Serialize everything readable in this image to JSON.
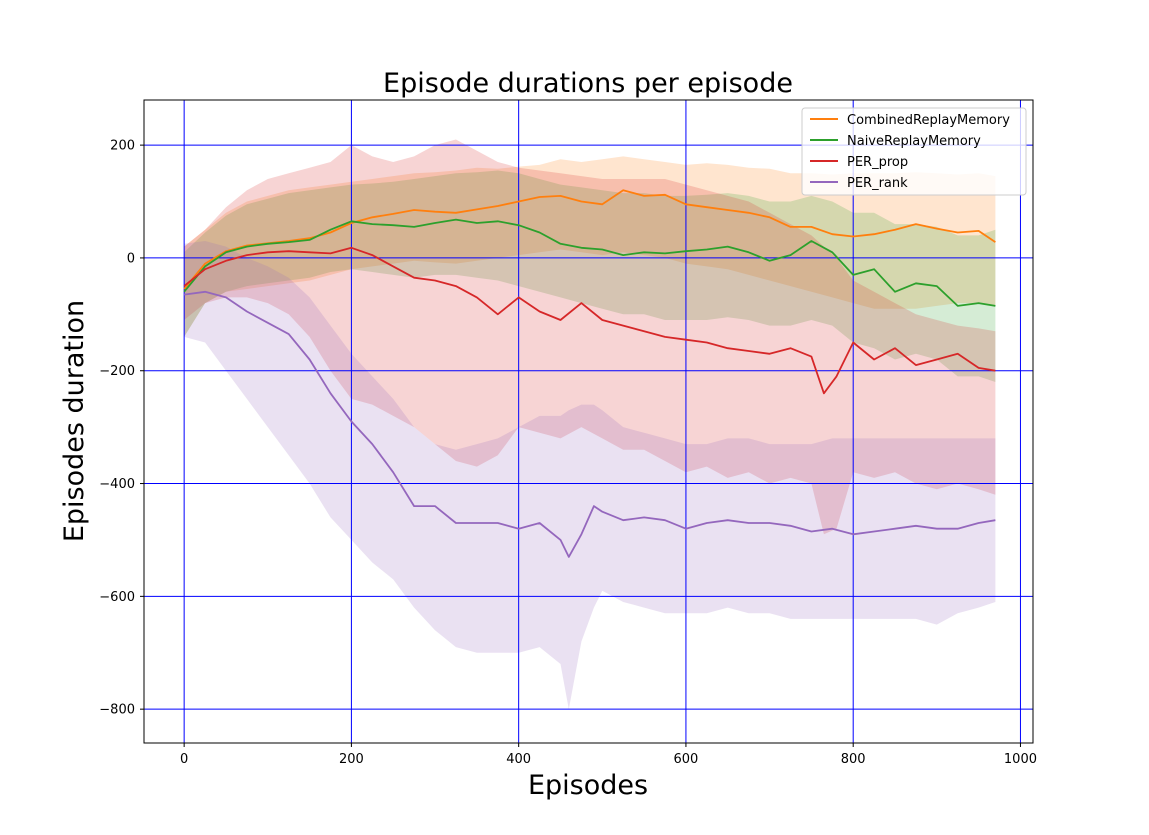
{
  "chart_data": {
    "type": "line",
    "title": "Episode durations per episode",
    "xlabel": "Episodes",
    "ylabel": "Episodes duration",
    "xlim": [
      -48,
      1015
    ],
    "ylim": [
      -860,
      280
    ],
    "xticks": [
      0,
      200,
      400,
      600,
      800,
      1000
    ],
    "yticks": [
      200,
      0,
      -200,
      -400,
      -600,
      -800
    ],
    "xtick_labels": [
      "0",
      "200",
      "400",
      "600",
      "800",
      "1000"
    ],
    "ytick_labels": [
      "200",
      "0",
      "−200",
      "−400",
      "−600",
      "−800"
    ],
    "grid": true,
    "grid_color": "#0000ff",
    "legend_position": "upper-right",
    "series": [
      {
        "name": "CombinedReplayMemory",
        "color": "#ff7f0e",
        "x": [
          0,
          25,
          50,
          75,
          100,
          125,
          150,
          175,
          200,
          225,
          250,
          275,
          300,
          325,
          350,
          375,
          400,
          425,
          450,
          475,
          500,
          525,
          550,
          575,
          600,
          625,
          650,
          675,
          700,
          725,
          750,
          775,
          800,
          825,
          850,
          875,
          900,
          925,
          950,
          970
        ],
        "y": [
          -55,
          -10,
          12,
          22,
          26,
          30,
          35,
          45,
          62,
          72,
          78,
          85,
          82,
          80,
          86,
          92,
          100,
          108,
          110,
          100,
          95,
          120,
          110,
          112,
          95,
          90,
          85,
          80,
          72,
          55,
          55,
          42,
          38,
          42,
          50,
          60,
          52,
          45,
          48,
          28
        ],
        "upper": [
          20,
          50,
          80,
          100,
          110,
          120,
          125,
          130,
          135,
          140,
          145,
          150,
          152,
          155,
          160,
          158,
          162,
          165,
          175,
          170,
          175,
          180,
          175,
          170,
          165,
          168,
          165,
          160,
          158,
          150,
          150,
          148,
          150,
          150,
          150,
          152,
          150,
          148,
          150,
          145
        ],
        "lower": [
          -140,
          -80,
          -60,
          -55,
          -50,
          -45,
          -40,
          -30,
          -20,
          -15,
          -10,
          -5,
          -8,
          -10,
          -5,
          0,
          5,
          10,
          15,
          10,
          5,
          10,
          5,
          0,
          -10,
          -15,
          -20,
          -30,
          -40,
          -50,
          -60,
          -70,
          -80,
          -90,
          -90,
          -90,
          -85,
          -80,
          -80,
          -85
        ]
      },
      {
        "name": "NaiveReplayMemory",
        "color": "#2ca02c",
        "x": [
          0,
          25,
          50,
          75,
          100,
          125,
          150,
          175,
          200,
          225,
          250,
          275,
          300,
          325,
          350,
          375,
          400,
          425,
          450,
          475,
          500,
          525,
          550,
          575,
          600,
          625,
          650,
          675,
          700,
          725,
          750,
          775,
          800,
          825,
          850,
          875,
          900,
          925,
          950,
          970
        ],
        "y": [
          -60,
          -15,
          10,
          20,
          25,
          28,
          32,
          50,
          65,
          60,
          58,
          55,
          62,
          68,
          62,
          65,
          58,
          45,
          25,
          18,
          15,
          5,
          10,
          8,
          12,
          15,
          20,
          10,
          -5,
          5,
          30,
          10,
          -30,
          -20,
          -60,
          -45,
          -50,
          -85,
          -80,
          -85
        ],
        "upper": [
          10,
          45,
          75,
          95,
          105,
          115,
          120,
          125,
          130,
          132,
          135,
          140,
          145,
          150,
          152,
          155,
          150,
          140,
          130,
          125,
          120,
          115,
          115,
          110,
          110,
          112,
          115,
          110,
          100,
          100,
          110,
          100,
          80,
          80,
          60,
          60,
          55,
          40,
          40,
          50
        ],
        "lower": [
          -140,
          -80,
          -60,
          -50,
          -45,
          -40,
          -35,
          -25,
          -20,
          -25,
          -30,
          -35,
          -30,
          -30,
          -35,
          -40,
          -50,
          -60,
          -70,
          -80,
          -90,
          -100,
          -100,
          -110,
          -110,
          -110,
          -105,
          -110,
          -120,
          -120,
          -110,
          -120,
          -150,
          -160,
          -180,
          -170,
          -180,
          -210,
          -210,
          -220
        ]
      },
      {
        "name": "PER_prop",
        "color": "#d62728",
        "x": [
          0,
          25,
          50,
          75,
          100,
          125,
          150,
          175,
          200,
          225,
          250,
          275,
          300,
          325,
          350,
          375,
          400,
          425,
          450,
          475,
          500,
          525,
          550,
          575,
          600,
          625,
          650,
          675,
          700,
          725,
          750,
          765,
          780,
          800,
          825,
          850,
          875,
          900,
          925,
          950,
          970
        ],
        "y": [
          -50,
          -20,
          -5,
          5,
          10,
          12,
          10,
          8,
          18,
          5,
          -15,
          -35,
          -40,
          -50,
          -70,
          -100,
          -70,
          -95,
          -110,
          -80,
          -110,
          -120,
          -130,
          -140,
          -145,
          -150,
          -160,
          -165,
          -170,
          -160,
          -175,
          -240,
          -210,
          -150,
          -180,
          -160,
          -190,
          -180,
          -170,
          -195,
          -200
        ],
        "upper": [
          20,
          50,
          90,
          120,
          140,
          150,
          160,
          170,
          200,
          180,
          170,
          180,
          200,
          210,
          190,
          170,
          160,
          155,
          150,
          145,
          140,
          140,
          140,
          140,
          130,
          120,
          110,
          100,
          80,
          60,
          40,
          20,
          0,
          -40,
          -60,
          -80,
          -100,
          -110,
          -120,
          -125,
          -130
        ],
        "lower": [
          -110,
          -80,
          -70,
          -70,
          -80,
          -100,
          -140,
          -200,
          -250,
          -260,
          -280,
          -300,
          -330,
          -360,
          -370,
          -350,
          -300,
          -310,
          -320,
          -300,
          -320,
          -340,
          -340,
          -360,
          -380,
          -370,
          -390,
          -380,
          -400,
          -390,
          -400,
          -490,
          -480,
          -380,
          -390,
          -380,
          -400,
          -410,
          -400,
          -410,
          -420
        ]
      },
      {
        "name": "PER_rank",
        "color": "#9467bd",
        "x": [
          0,
          25,
          50,
          75,
          100,
          125,
          150,
          175,
          200,
          225,
          250,
          275,
          300,
          325,
          350,
          375,
          400,
          425,
          450,
          460,
          475,
          490,
          500,
          525,
          550,
          575,
          600,
          625,
          650,
          675,
          700,
          725,
          750,
          775,
          800,
          825,
          850,
          875,
          900,
          925,
          950,
          970
        ],
        "y": [
          -65,
          -60,
          -70,
          -95,
          -115,
          -135,
          -180,
          -240,
          -290,
          -330,
          -380,
          -440,
          -440,
          -470,
          -470,
          -470,
          -480,
          -470,
          -500,
          -530,
          -490,
          -440,
          -450,
          -465,
          -460,
          -465,
          -480,
          -470,
          -465,
          -470,
          -470,
          -475,
          -485,
          -480,
          -490,
          -485,
          -480,
          -475,
          -480,
          -480,
          -470,
          -465
        ],
        "upper": [
          25,
          30,
          20,
          0,
          -15,
          -35,
          -70,
          -120,
          -170,
          -210,
          -250,
          -300,
          -330,
          -340,
          -330,
          -320,
          -300,
          -280,
          -280,
          -270,
          -260,
          -260,
          -270,
          -300,
          -310,
          -320,
          -330,
          -330,
          -320,
          -320,
          -330,
          -330,
          -330,
          -320,
          -320,
          -320,
          -320,
          -320,
          -320,
          -320,
          -320,
          -320
        ],
        "lower": [
          -140,
          -150,
          -200,
          -250,
          -300,
          -350,
          -400,
          -460,
          -500,
          -540,
          -570,
          -620,
          -660,
          -690,
          -700,
          -700,
          -700,
          -690,
          -720,
          -800,
          -680,
          -620,
          -590,
          -610,
          -620,
          -630,
          -630,
          -630,
          -620,
          -630,
          -630,
          -640,
          -640,
          -640,
          -640,
          -640,
          -640,
          -640,
          -650,
          -630,
          -620,
          -610
        ]
      }
    ]
  }
}
